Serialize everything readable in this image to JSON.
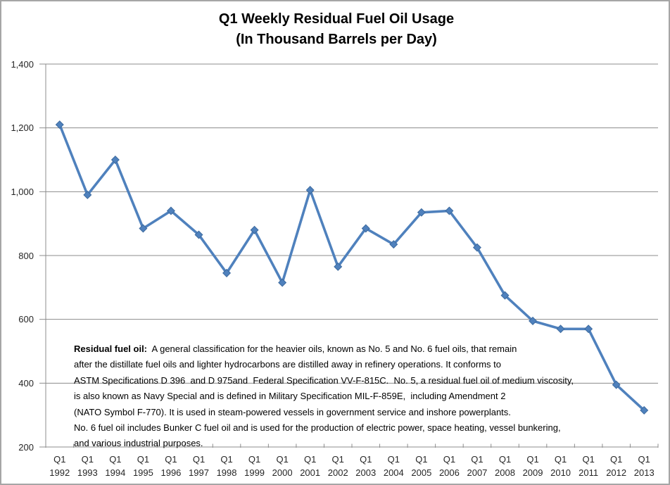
{
  "window": {
    "background": "#FFFFFF",
    "border_color": "#A6A6A6"
  },
  "chart_data": {
    "type": "line",
    "title": "Q1 Weekly Residual Fuel Oil Usage",
    "subtitle": "(In Thousand Barrels per Day)",
    "grid": "horizontal",
    "legend": "none",
    "series_color": "#4F81BD",
    "marker_shape": "diamond",
    "gridline_color": "#8C8C8C",
    "axis_text_color": "#262626",
    "y_axis": {
      "min": 200,
      "max": 1400,
      "step": 200,
      "ticks": [
        "1,400",
        "1,200",
        "1,000",
        "800",
        "600",
        "400",
        "200"
      ]
    },
    "x_axis": {
      "tick_label_top": "Q1",
      "years": [
        "1992",
        "1993",
        "1994",
        "1995",
        "1996",
        "1997",
        "1998",
        "1999",
        "2000",
        "2001",
        "2002",
        "2003",
        "2004",
        "2005",
        "2006",
        "2007",
        "2008",
        "2009",
        "2010",
        "2011",
        "2012",
        "2013"
      ]
    },
    "categories": [
      "Q1 1992",
      "Q1 1993",
      "Q1 1994",
      "Q1 1995",
      "Q1 1996",
      "Q1 1997",
      "Q1 1998",
      "Q1 1999",
      "Q1 2000",
      "Q1 2001",
      "Q1 2002",
      "Q1 2003",
      "Q1 2004",
      "Q1 2005",
      "Q1 2006",
      "Q1 2007",
      "Q1 2008",
      "Q1 2009",
      "Q1 2010",
      "Q1 2011",
      "Q1 2012",
      "Q1 2013"
    ],
    "values": [
      1210,
      990,
      1100,
      885,
      940,
      865,
      745,
      880,
      715,
      1005,
      765,
      885,
      835,
      935,
      940,
      825,
      675,
      595,
      570,
      570,
      395,
      315
    ]
  },
  "annotation": {
    "lead": "Residual fuel oil:",
    "line1_rest": "  A general classification for the heavier oils, known as No. 5 and No. 6 fuel oils, that remain",
    "lines": [
      "after the distillate fuel oils and lighter hydrocarbons are distilled away in refinery operations. It conforms to",
      "ASTM Specifications D 396  and D 975and  Federal Specification VV-F-815C.  No. 5, a residual fuel oil of medium viscosity,",
      "is also known as Navy Special and is defined in Military Specification MIL-F-859E,  including Amendment 2",
      "(NATO Symbol F-770). It is used in steam-powered vessels in government service and inshore powerplants.",
      "No. 6 fuel oil includes Bunker C fuel oil and is used for the production of electric power, space heating, vessel bunkering,",
      "and various industrial purposes."
    ]
  }
}
